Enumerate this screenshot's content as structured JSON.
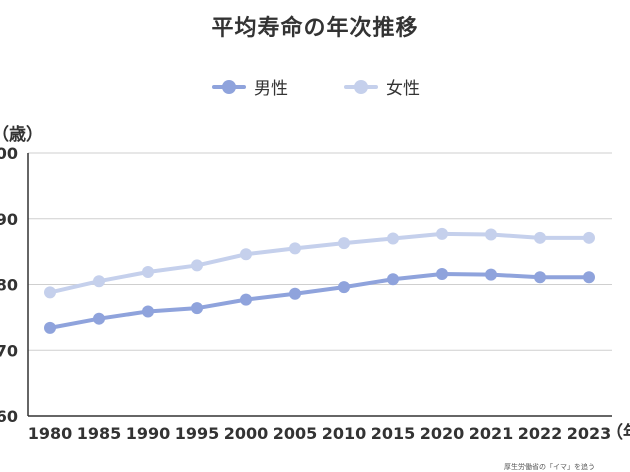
{
  "chart_data": {
    "type": "line",
    "title": "平均寿命の年次推移",
    "ylabel": "（歳）",
    "xlabel": "（年",
    "categories": [
      "1980",
      "1985",
      "1990",
      "1995",
      "2000",
      "2005",
      "2010",
      "2015",
      "2020",
      "2021",
      "2022",
      "2023"
    ],
    "ylim": [
      60,
      100
    ],
    "yticks": [
      "00",
      "90",
      "80",
      "70",
      "60"
    ],
    "grid": true,
    "legend_position": "top-center",
    "series": [
      {
        "name": "男性",
        "color": "#8fa3dc",
        "values": [
          73.4,
          74.8,
          75.9,
          76.4,
          77.7,
          78.6,
          79.6,
          80.8,
          81.6,
          81.5,
          81.1,
          81.1
        ]
      },
      {
        "name": "女性",
        "color": "#c5d0ec",
        "values": [
          78.8,
          80.5,
          81.9,
          82.9,
          84.6,
          85.5,
          86.3,
          87.0,
          87.7,
          87.6,
          87.1,
          87.1
        ]
      }
    ]
  },
  "credit_text": "厚生労働省の「イマ」を追う"
}
